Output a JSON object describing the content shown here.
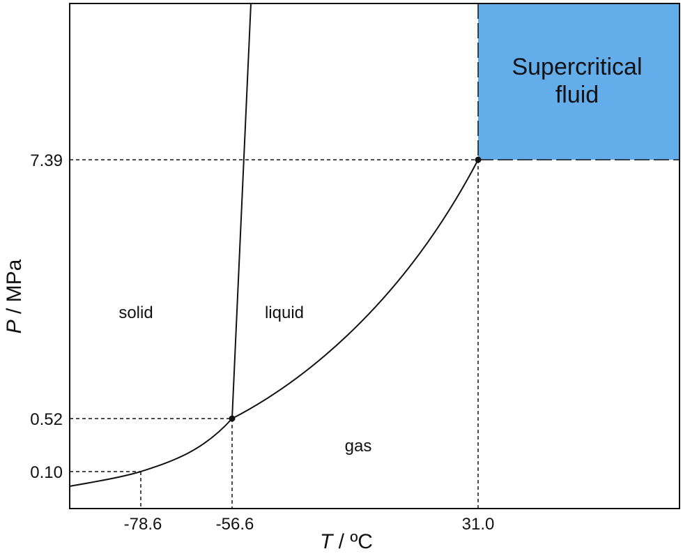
{
  "chart_data": {
    "type": "phase-diagram",
    "title": "",
    "xlabel_symbol": "T",
    "xlabel_unit": " / ºC",
    "ylabel_symbol": "P",
    "ylabel_unit": " / MPa",
    "x_ticks": [
      "-78.6",
      "-56.6",
      "31.0"
    ],
    "y_ticks": [
      "7.39",
      "0.52",
      "0.10"
    ],
    "regions": {
      "solid": "solid",
      "liquid": "liquid",
      "gas": "gas",
      "supercritical_line1": "Supercritical",
      "supercritical_line2": "fluid"
    },
    "points": {
      "sublimation": {
        "T": -78.6,
        "P": 0.1
      },
      "triple_point": {
        "T": -56.6,
        "P": 0.52
      },
      "critical_point": {
        "T": 31.0,
        "P": 7.39
      }
    },
    "grid": false,
    "supercritical_fill": "#63adeb",
    "line_color": "#111111"
  }
}
